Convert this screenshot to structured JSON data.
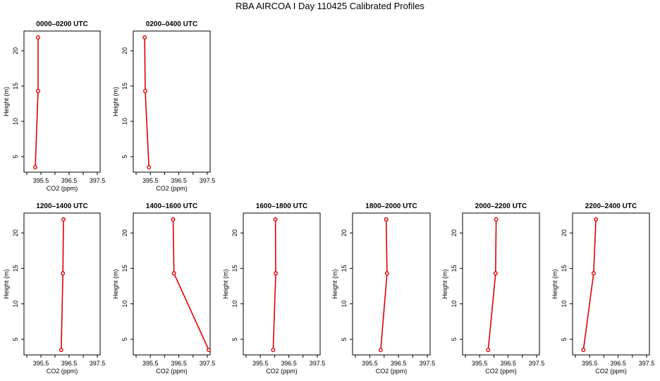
{
  "title": "RBA AIRCOA I  Day 110425  Calibrated Profiles",
  "colors": {
    "series": "#dd0000",
    "axis": "#000000"
  },
  "chart_data": [
    {
      "type": "line",
      "title": "0000–0200 UTC",
      "xlabel": "CO2 (ppm)",
      "ylabel": "Height (m)",
      "xlim": [
        394.9,
        397.6
      ],
      "ylim": [
        2.8,
        22.8
      ],
      "xticks": [
        "395.5",
        "396.5",
        "397.5"
      ],
      "yticks": [
        "5",
        "10",
        "15",
        "20"
      ],
      "series": [
        {
          "x": [
            395.3,
            395.4,
            395.4
          ],
          "y": [
            3.5,
            14.3,
            21.9
          ]
        }
      ]
    },
    {
      "type": "line",
      "title": "0200–0400 UTC",
      "xlabel": "CO2 (ppm)",
      "ylabel": "Height (m)",
      "xlim": [
        394.9,
        397.6
      ],
      "ylim": [
        2.8,
        22.8
      ],
      "xticks": [
        "395.5",
        "396.5",
        "397.5"
      ],
      "yticks": [
        "5",
        "10",
        "15",
        "20"
      ],
      "series": [
        {
          "x": [
            395.45,
            395.32,
            395.3
          ],
          "y": [
            3.5,
            14.3,
            21.9
          ]
        }
      ]
    },
    {
      "type": "line",
      "title": "1200–1400 UTC",
      "xlabel": "CO2 (ppm)",
      "ylabel": "Height (m)",
      "xlim": [
        394.9,
        397.6
      ],
      "ylim": [
        2.8,
        22.8
      ],
      "xticks": [
        "395.5",
        "396.5",
        "397.5"
      ],
      "yticks": [
        "5",
        "10",
        "15",
        "20"
      ],
      "series": [
        {
          "x": [
            396.22,
            396.28,
            396.3
          ],
          "y": [
            3.5,
            14.3,
            21.9
          ]
        }
      ]
    },
    {
      "type": "line",
      "title": "1400–1600 UTC",
      "xlabel": "CO2 (ppm)",
      "ylabel": "Height (m)",
      "xlim": [
        394.9,
        397.6
      ],
      "ylim": [
        2.8,
        22.8
      ],
      "xticks": [
        "395.5",
        "396.5",
        "397.5"
      ],
      "yticks": [
        "5",
        "10",
        "15",
        "20"
      ],
      "series": [
        {
          "x": [
            397.55,
            396.33,
            396.3
          ],
          "y": [
            3.5,
            14.3,
            21.9
          ]
        }
      ]
    },
    {
      "type": "line",
      "title": "1600–1800 UTC",
      "xlabel": "CO2 (ppm)",
      "ylabel": "Height (m)",
      "xlim": [
        394.9,
        397.6
      ],
      "ylim": [
        2.8,
        22.8
      ],
      "xticks": [
        "395.5",
        "396.5",
        "397.5"
      ],
      "yticks": [
        "5",
        "10",
        "15",
        "20"
      ],
      "series": [
        {
          "x": [
            395.95,
            396.04,
            396.03
          ],
          "y": [
            3.5,
            14.3,
            21.9
          ]
        }
      ]
    },
    {
      "type": "line",
      "title": "1800–2000 UTC",
      "xlabel": "CO2 (ppm)",
      "ylabel": "Height (m)",
      "xlim": [
        394.9,
        397.6
      ],
      "ylim": [
        2.8,
        22.8
      ],
      "xticks": [
        "395.5",
        "396.5",
        "397.5"
      ],
      "yticks": [
        "5",
        "10",
        "15",
        "20"
      ],
      "series": [
        {
          "x": [
            395.88,
            396.1,
            396.07
          ],
          "y": [
            3.5,
            14.3,
            21.9
          ]
        }
      ]
    },
    {
      "type": "line",
      "title": "2000–2200 UTC",
      "xlabel": "CO2 (ppm)",
      "ylabel": "Height (m)",
      "xlim": [
        394.9,
        397.6
      ],
      "ylim": [
        2.8,
        22.8
      ],
      "xticks": [
        "395.5",
        "396.5",
        "397.5"
      ],
      "yticks": [
        "5",
        "10",
        "15",
        "20"
      ],
      "series": [
        {
          "x": [
            395.8,
            396.06,
            396.08
          ],
          "y": [
            3.5,
            14.3,
            21.9
          ]
        }
      ]
    },
    {
      "type": "line",
      "title": "2200–2400 UTC",
      "xlabel": "CO2 (ppm)",
      "ylabel": "Height (m)",
      "xlim": [
        394.9,
        397.6
      ],
      "ylim": [
        2.8,
        22.8
      ],
      "xticks": [
        "395.5",
        "396.5",
        "397.5"
      ],
      "yticks": [
        "5",
        "10",
        "15",
        "20"
      ],
      "series": [
        {
          "x": [
            395.28,
            395.64,
            395.72
          ],
          "y": [
            3.5,
            14.3,
            21.9
          ]
        }
      ]
    }
  ]
}
